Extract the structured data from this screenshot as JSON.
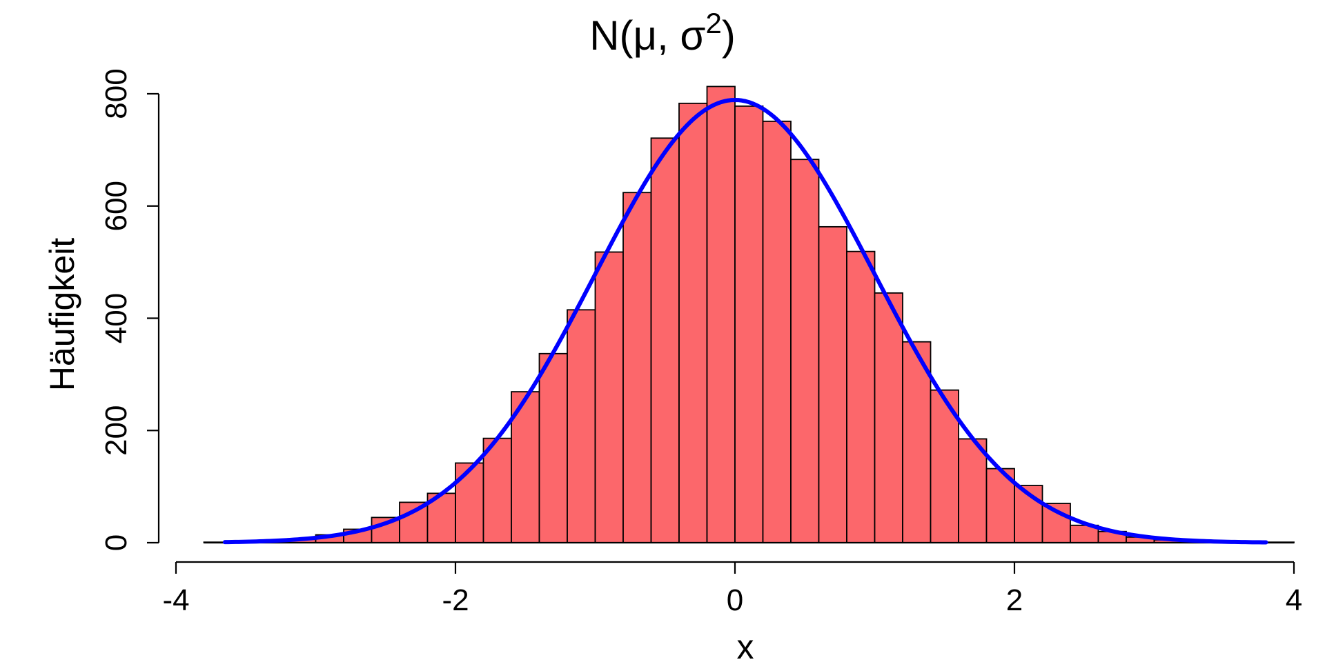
{
  "chart_data": {
    "type": "bar",
    "title": "N(μ, σ²)",
    "title_parts": {
      "base": "N(μ, σ",
      "sup": "2",
      "close": ")"
    },
    "xlabel": "x",
    "ylabel": "Häufigkeit",
    "xlim": [
      -4,
      4
    ],
    "ylim": [
      0,
      800
    ],
    "x_ticks": [
      -4,
      -2,
      0,
      2,
      4
    ],
    "y_ticks": [
      0,
      200,
      400,
      600,
      800
    ],
    "x_tick_labels": [
      "-4",
      "-2",
      "0",
      "2",
      "4"
    ],
    "y_tick_labels": [
      "0",
      "200",
      "400",
      "600",
      "800"
    ],
    "bin_width": 0.2,
    "bins": [
      {
        "x0": -3.8,
        "x1": -3.6,
        "count": 1
      },
      {
        "x0": -3.6,
        "x1": -3.4,
        "count": 2
      },
      {
        "x0": -3.4,
        "x1": -3.2,
        "count": 4
      },
      {
        "x0": -3.2,
        "x1": -3.0,
        "count": 7
      },
      {
        "x0": -3.0,
        "x1": -2.8,
        "count": 14
      },
      {
        "x0": -2.8,
        "x1": -2.6,
        "count": 24
      },
      {
        "x0": -2.6,
        "x1": -2.4,
        "count": 45
      },
      {
        "x0": -2.4,
        "x1": -2.2,
        "count": 72
      },
      {
        "x0": -2.2,
        "x1": -2.0,
        "count": 88
      },
      {
        "x0": -2.0,
        "x1": -1.8,
        "count": 142
      },
      {
        "x0": -1.8,
        "x1": -1.6,
        "count": 186
      },
      {
        "x0": -1.6,
        "x1": -1.4,
        "count": 269
      },
      {
        "x0": -1.4,
        "x1": -1.2,
        "count": 337
      },
      {
        "x0": -1.2,
        "x1": -1.0,
        "count": 415
      },
      {
        "x0": -1.0,
        "x1": -0.8,
        "count": 518
      },
      {
        "x0": -0.8,
        "x1": -0.6,
        "count": 624
      },
      {
        "x0": -0.6,
        "x1": -0.4,
        "count": 721
      },
      {
        "x0": -0.4,
        "x1": -0.2,
        "count": 783
      },
      {
        "x0": -0.2,
        "x1": 0.0,
        "count": 813
      },
      {
        "x0": 0.0,
        "x1": 0.2,
        "count": 778
      },
      {
        "x0": 0.2,
        "x1": 0.4,
        "count": 751
      },
      {
        "x0": 0.4,
        "x1": 0.6,
        "count": 683
      },
      {
        "x0": 0.6,
        "x1": 0.8,
        "count": 563
      },
      {
        "x0": 0.8,
        "x1": 1.0,
        "count": 519
      },
      {
        "x0": 1.0,
        "x1": 1.2,
        "count": 445
      },
      {
        "x0": 1.2,
        "x1": 1.4,
        "count": 358
      },
      {
        "x0": 1.4,
        "x1": 1.6,
        "count": 272
      },
      {
        "x0": 1.6,
        "x1": 1.8,
        "count": 185
      },
      {
        "x0": 1.8,
        "x1": 2.0,
        "count": 132
      },
      {
        "x0": 2.0,
        "x1": 2.2,
        "count": 102
      },
      {
        "x0": 2.2,
        "x1": 2.4,
        "count": 70
      },
      {
        "x0": 2.4,
        "x1": 2.6,
        "count": 31
      },
      {
        "x0": 2.6,
        "x1": 2.8,
        "count": 20
      },
      {
        "x0": 2.8,
        "x1": 3.0,
        "count": 10
      },
      {
        "x0": 3.0,
        "x1": 3.2,
        "count": 5
      },
      {
        "x0": 3.2,
        "x1": 3.4,
        "count": 3
      },
      {
        "x0": 3.4,
        "x1": 3.6,
        "count": 2
      },
      {
        "x0": 3.6,
        "x1": 3.8,
        "count": 1
      },
      {
        "x0": 3.8,
        "x1": 4.0,
        "count": 1
      }
    ],
    "curve": {
      "type": "normal_density_scaled",
      "mean": 0,
      "sd": 1,
      "peak": 789,
      "x_range": [
        -3.65,
        3.8
      ]
    },
    "colors": {
      "bar_fill": "#fc676b",
      "bar_border": "#000000",
      "curve": "#0000ff",
      "axis": "#000000",
      "background": "#ffffff"
    },
    "grid": false,
    "legend": "none"
  }
}
